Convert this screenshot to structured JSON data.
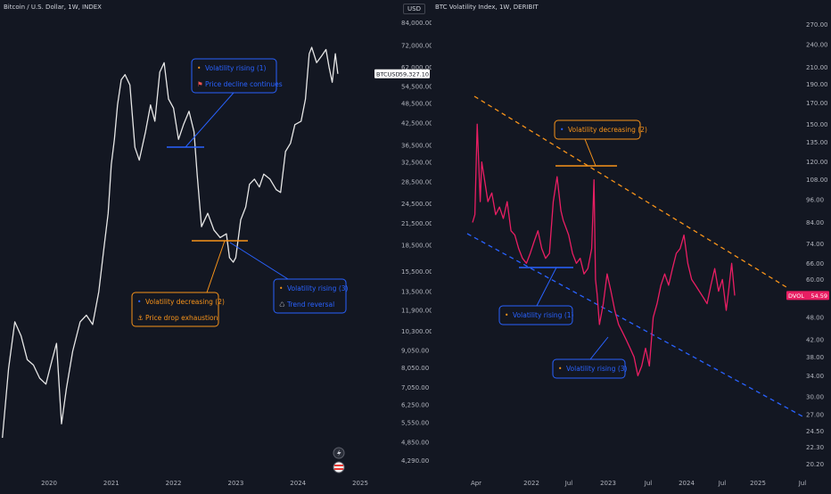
{
  "colors": {
    "background": "#131722",
    "axis_text": "#b2b5be",
    "btc_line": "#e6e6e6",
    "dvol_line": "#e91e63",
    "blue": "#2962ff",
    "orange": "#f7931a",
    "label_bg": "#131722"
  },
  "left_panel": {
    "title": "Bitcoin / U.S. Dollar, 1W, INDEX",
    "currency": "USD",
    "price_tag": "BTCUSD",
    "price_value": "59,327.10"
  },
  "right_panel": {
    "title": "BTC Volatility Index, 1W, DERIBIT",
    "price_tag": "DVOL",
    "price_value": "54.59"
  },
  "chart_data": [
    {
      "type": "line",
      "title": "Bitcoin / U.S. Dollar, 1W, INDEX",
      "y_scale": "log",
      "ylim": [
        3900,
        90000
      ],
      "y_ticks": [
        "84,000.00",
        "72,000.00",
        "62,000.00",
        "54,500.00",
        "48,500.00",
        "42,500.00",
        "36,500.00",
        "32,500.00",
        "28,500.00",
        "24,500.00",
        "21,500.00",
        "18,500.00",
        "15,500.00",
        "13,500.00",
        "11,900.00",
        "10,300.00",
        "9,050.00",
        "8,050.00",
        "7,050.00",
        "6,250.00",
        "5,550.00",
        "4,850.00",
        "4,290.00"
      ],
      "x_ticks": [
        "2020",
        "2021",
        "2022",
        "2023",
        "2024",
        "2025"
      ],
      "series": [
        {
          "x": [
            2019.25,
            2019.35,
            2019.45,
            2019.55,
            2019.65,
            2019.75,
            2019.85,
            2019.95,
            2020.05,
            2020.12,
            2020.2,
            2020.28,
            2020.38,
            2020.5,
            2020.6,
            2020.7,
            2020.8,
            2020.88,
            2020.95,
            2021.0,
            2021.05,
            2021.1,
            2021.16,
            2021.22,
            2021.3,
            2021.38,
            2021.45,
            2021.55,
            2021.63,
            2021.7,
            2021.78,
            2021.85,
            2021.92,
            2022.0,
            2022.08,
            2022.16,
            2022.25,
            2022.33,
            2022.38,
            2022.45,
            2022.55,
            2022.65,
            2022.75,
            2022.85,
            2022.9,
            2022.96,
            2023.0,
            2023.08,
            2023.16,
            2023.22,
            2023.3,
            2023.38,
            2023.45,
            2023.55,
            2023.65,
            2023.72,
            2023.8,
            2023.88,
            2023.95,
            2024.05,
            2024.12,
            2024.18,
            2024.22,
            2024.3,
            2024.38,
            2024.45,
            2024.5,
            2024.55,
            2024.6,
            2024.64
          ],
          "values": [
            5000,
            8000,
            11000,
            10000,
            8500,
            8200,
            7500,
            7200,
            8500,
            9500,
            5500,
            7000,
            9000,
            11000,
            11500,
            10800,
            13500,
            18000,
            23000,
            32000,
            38000,
            48000,
            57000,
            59000,
            55000,
            36000,
            33000,
            40000,
            48000,
            43000,
            60000,
            64000,
            50000,
            47000,
            38000,
            42000,
            46000,
            40000,
            30000,
            21000,
            23000,
            20500,
            19500,
            20000,
            17000,
            16500,
            17000,
            22000,
            24000,
            28000,
            29000,
            27500,
            30000,
            29000,
            27000,
            26500,
            35000,
            37000,
            42000,
            43000,
            50000,
            68000,
            71000,
            64000,
            67000,
            70000,
            62000,
            56000,
            68000,
            59327
          ]
        }
      ],
      "annotations": [
        {
          "label": "Volatility rising (1)",
          "line2": "Price decline continues",
          "color": "blue"
        },
        {
          "label": "Volatility decreasing (2)",
          "line2": "Price drop exhaustion",
          "color": "orange"
        },
        {
          "label": "Volatility rising (3)",
          "line2": "Trend reversal",
          "color": "blue"
        }
      ]
    },
    {
      "type": "line",
      "title": "BTC Volatility Index, 1W, DERIBIT",
      "y_scale": "log",
      "ylim": [
        19,
        290
      ],
      "y_ticks": [
        "270.00",
        "240.00",
        "210.00",
        "190.00",
        "170.00",
        "150.00",
        "135.00",
        "120.00",
        "108.00",
        "96.00",
        "84.00",
        "74.00",
        "66.00",
        "60.00",
        "54.00",
        "48.00",
        "42.00",
        "38.00",
        "34.00",
        "30.00",
        "27.00",
        "24.50",
        "22.30",
        "20.20"
      ],
      "x_ticks": [
        "Apr",
        "2022",
        "Jul",
        "2023",
        "Jul",
        "2024",
        "Jul",
        "2025",
        "Jul"
      ],
      "series": [
        {
          "x": [
            2021.25,
            2021.28,
            2021.31,
            2021.35,
            2021.37,
            2021.4,
            2021.45,
            2021.5,
            2021.55,
            2021.6,
            2021.65,
            2021.7,
            2021.75,
            2021.8,
            2021.85,
            2021.9,
            2021.95,
            2022.0,
            2022.05,
            2022.1,
            2022.15,
            2022.2,
            2022.25,
            2022.3,
            2022.35,
            2022.4,
            2022.43,
            2022.46,
            2022.5,
            2022.55,
            2022.6,
            2022.65,
            2022.7,
            2022.75,
            2022.8,
            2022.83,
            2022.85,
            2022.87,
            2022.9,
            2022.95,
            2023.0,
            2023.05,
            2023.1,
            2023.15,
            2023.2,
            2023.25,
            2023.3,
            2023.35,
            2023.4,
            2023.45,
            2023.5,
            2023.55,
            2023.6,
            2023.65,
            2023.7,
            2023.75,
            2023.8,
            2023.85,
            2023.9,
            2023.95,
            2024.0,
            2024.05,
            2024.1,
            2024.15,
            2024.2,
            2024.25,
            2024.3,
            2024.35,
            2024.4,
            2024.45,
            2024.5,
            2024.55,
            2024.58,
            2024.62,
            2024.66
          ],
          "values": [
            84,
            88,
            150,
            95,
            120,
            110,
            95,
            100,
            88,
            92,
            86,
            95,
            80,
            78,
            72,
            68,
            66,
            70,
            75,
            80,
            72,
            68,
            70,
            95,
            110,
            90,
            85,
            82,
            78,
            70,
            66,
            68,
            62,
            64,
            72,
            108,
            60,
            55,
            46,
            52,
            62,
            56,
            50,
            46,
            44,
            42,
            40,
            38,
            34,
            36,
            40,
            36,
            48,
            52,
            58,
            62,
            58,
            64,
            70,
            72,
            78,
            66,
            60,
            58,
            56,
            54,
            52,
            58,
            64,
            56,
            60,
            50,
            56,
            66,
            54.59
          ]
        }
      ],
      "annotations": [
        {
          "label": "Volatility decreasing (2)",
          "color": "orange"
        },
        {
          "label": "Volatility rising (1)",
          "color": "blue"
        },
        {
          "label": "Volatility rising (3)",
          "color": "blue"
        }
      ]
    }
  ]
}
